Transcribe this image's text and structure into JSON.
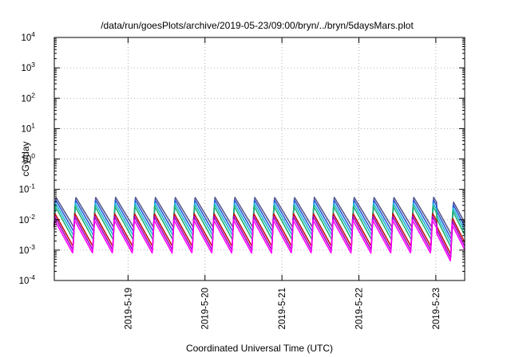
{
  "chart_data": {
    "type": "line",
    "title": "/data/run/goesPlots/archive/2019-05-23/09:00/bryn/../bryn/5daysMars.plot",
    "xlabel": "Coordinated Universal Time (UTC)",
    "ylabel": "cGy/day",
    "y_scale": "log",
    "ylim": [
      0.0001,
      10000
    ],
    "xlim": [
      "2019-05-18T01:00",
      "2019-05-23T09:00"
    ],
    "y_ticks": [
      {
        "base": "10",
        "exp": "-4"
      },
      {
        "base": "10",
        "exp": "-3"
      },
      {
        "base": "10",
        "exp": "-2"
      },
      {
        "base": "10",
        "exp": "-1"
      },
      {
        "base": "10",
        "exp": "0"
      },
      {
        "base": "10",
        "exp": "1"
      },
      {
        "base": "10",
        "exp": "2"
      },
      {
        "base": "10",
        "exp": "3"
      },
      {
        "base": "10",
        "exp": "4"
      }
    ],
    "x_ticks": [
      "2019-5-19",
      "2019-5-20",
      "2019-5-21",
      "2019-5-22",
      "2019-5-23"
    ],
    "grid": true,
    "legend": "none",
    "cycle_hours": 6.2,
    "series": [
      {
        "color": "#5a5a8a",
        "peak": 0.055,
        "trough": 0.0055
      },
      {
        "color": "#2a5ad8",
        "peak": 0.045,
        "trough": 0.004
      },
      {
        "color": "#18b8d8",
        "peak": 0.035,
        "trough": 0.003
      },
      {
        "color": "#20b070",
        "peak": 0.028,
        "trough": 0.0022
      },
      {
        "color": "#c01010",
        "peak": 0.016,
        "trough": 0.0013
      },
      {
        "color": "#a000c8",
        "peak": 0.013,
        "trough": 0.001
      },
      {
        "color": "#ff00ff",
        "peak": 0.01,
        "trough": 0.0008
      }
    ],
    "final_interval": {
      "start": "2019-05-23T00:15",
      "peak_factor": 0.7,
      "trough_factor": 0.55
    }
  }
}
